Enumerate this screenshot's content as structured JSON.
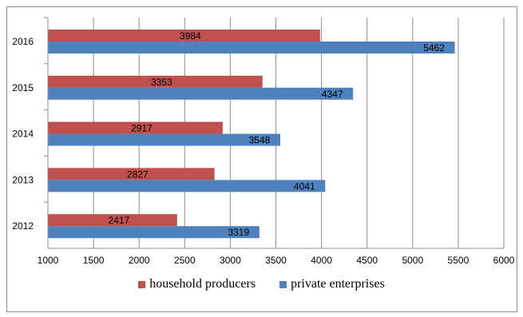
{
  "chart_data": {
    "type": "bar",
    "orientation": "horizontal",
    "categories": [
      "2016",
      "2015",
      "2014",
      "2013",
      "2012"
    ],
    "series": [
      {
        "name": "household producers",
        "color": "#c0504d",
        "values": [
          3984,
          3353,
          2917,
          2827,
          2417
        ]
      },
      {
        "name": "private enterprises",
        "color": "#4f81bd",
        "values": [
          5462,
          4347,
          3548,
          4041,
          3319
        ]
      }
    ],
    "xlim": [
      1000,
      6000
    ],
    "xticks": [
      "1000",
      "1500",
      "2000",
      "2500",
      "3000",
      "3500",
      "4000",
      "4500",
      "5000",
      "5500",
      "6000"
    ],
    "grid": "vertical",
    "legend_position": "bottom",
    "data_labels": true
  }
}
